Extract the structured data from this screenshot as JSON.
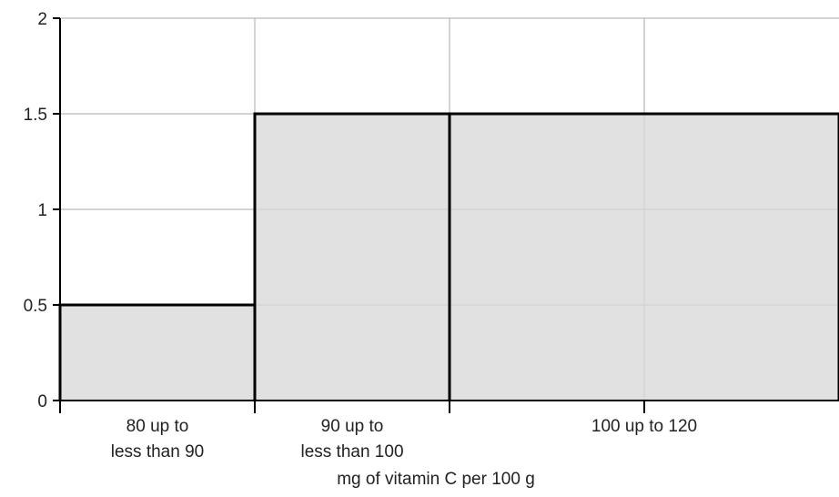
{
  "chart_data": {
    "type": "bar",
    "subtype": "histogram",
    "bins": [
      {
        "x_start": 80,
        "x_end": 90,
        "value": 0.5,
        "label_lines": [
          "80 up to",
          "less than 90"
        ]
      },
      {
        "x_start": 90,
        "x_end": 100,
        "value": 1.5,
        "label_lines": [
          "90 up to",
          "less than 100"
        ]
      },
      {
        "x_start": 100,
        "x_end": 120,
        "value": 1.5,
        "label_lines": [
          "100 up to 120"
        ]
      }
    ],
    "xlabel": "mg of vitamin C per 100 g",
    "ylabel": "",
    "ylim": [
      0,
      2
    ],
    "xlim": [
      80,
      120
    ],
    "y_ticks": [
      0,
      0.5,
      1,
      1.5,
      2
    ],
    "y_tick_labels": [
      "0",
      "0.5",
      "1",
      "1.5",
      "2"
    ],
    "x_gridlines": [
      90,
      100,
      110
    ],
    "grid": true,
    "colors": {
      "bar_fill": "#d9d9d9",
      "bar_stroke": "#000000",
      "grid": "#aaaaaa",
      "axis": "#000000"
    }
  }
}
